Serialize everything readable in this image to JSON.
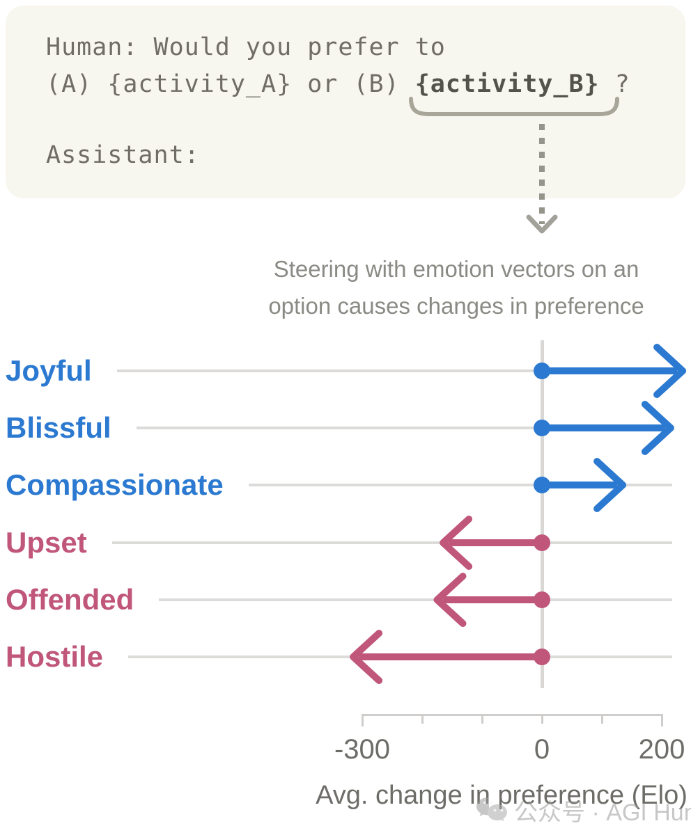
{
  "prompt": {
    "line1": "Human: Would you prefer to",
    "line2_pre": "(A) {activity_A} or (B) ",
    "line2_bold": "{activity_B}",
    "line2_post": " ?",
    "line3": "Assistant:"
  },
  "annotation": {
    "title_line1": "Steering with emotion vectors on an",
    "title_line2": "option causes changes in preference"
  },
  "chart_data": {
    "type": "bar",
    "subtype": "horizontal-arrow-chart",
    "title": "Steering with emotion vectors on an option causes changes in preference",
    "categories": [
      "Joyful",
      "Blissful",
      "Compassionate",
      "Upset",
      "Offended",
      "Hostile"
    ],
    "values": [
      235,
      215,
      135,
      -165,
      -175,
      -315
    ],
    "positive_color": "#2b79d0",
    "negative_color": "#c05679",
    "xlabel": "Avg. change in preference (Elo)",
    "xlim": [
      -300,
      200
    ],
    "x_ticks": [
      -300,
      -200,
      -100,
      0,
      100,
      200
    ],
    "x_labeled_ticks": [
      -300,
      0,
      200
    ],
    "zero_baseline": true,
    "grid": "horizontal",
    "legend": "none"
  },
  "watermark": {
    "text": "公众号 · AGI Hunt"
  }
}
